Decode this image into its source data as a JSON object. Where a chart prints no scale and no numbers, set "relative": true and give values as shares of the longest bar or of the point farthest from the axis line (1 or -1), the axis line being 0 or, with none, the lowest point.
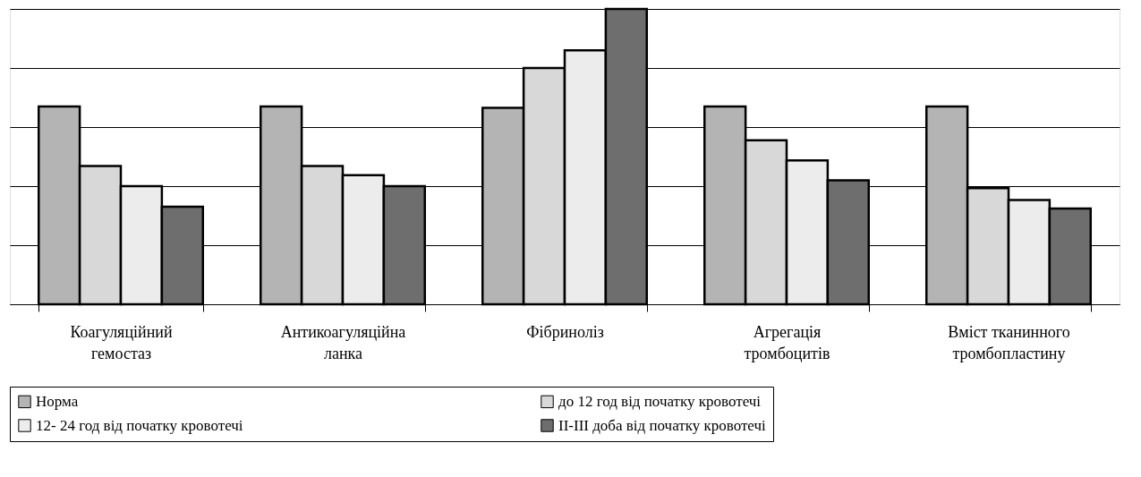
{
  "chart_data": {
    "type": "bar",
    "relative": true,
    "grid": "y",
    "legend": "bottom",
    "categories": [
      "Коагуляційний\nгемостаз",
      "Антикоагуляційна\nланка",
      "Фібриноліз",
      "Агрегація\nтромбоцитів",
      "Вміст тканинного\nтромбопластину"
    ],
    "series": [
      {
        "name": "Норма",
        "color": "#b4b4b4",
        "values": [
          0.67,
          0.67,
          0.665,
          0.67,
          0.67
        ]
      },
      {
        "name": "до 12 год від початку кровотечі",
        "color": "#d8d8d8",
        "values": [
          0.468,
          0.468,
          0.8,
          0.555,
          0.393
        ]
      },
      {
        "name": "12- 24 год від початку кровотечі",
        "color": "#ececec",
        "values": [
          0.4,
          0.437,
          0.86,
          0.487,
          0.353
        ]
      },
      {
        "name": "ІІ-ІІІ доба від початку кровотечі",
        "color": "#6e6e6e",
        "values": [
          0.33,
          0.4,
          1,
          0.42,
          0.324
        ]
      }
    ]
  }
}
